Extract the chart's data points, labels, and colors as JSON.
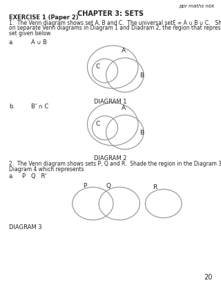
{
  "bg_color": "#ffffff",
  "page_number": "20",
  "header_text": "ppr maths nbk",
  "chapter_title": "CHAPTER 3: SETS",
  "exercise_title": "EXERCISE 1 (Paper 2)",
  "diagram1_label": "DIAGRAM 1",
  "diagram2_label": "DIAGRAM 2",
  "diagram3_label": "DIAGRAM 3",
  "circle_color": "#999999",
  "circle_lw": 0.9,
  "text_color": "#222222",
  "font_size_body": 5.5,
  "font_size_label": 6.0,
  "font_size_title": 7.0,
  "font_size_header": 5.0,
  "font_size_diagram": 6.0
}
